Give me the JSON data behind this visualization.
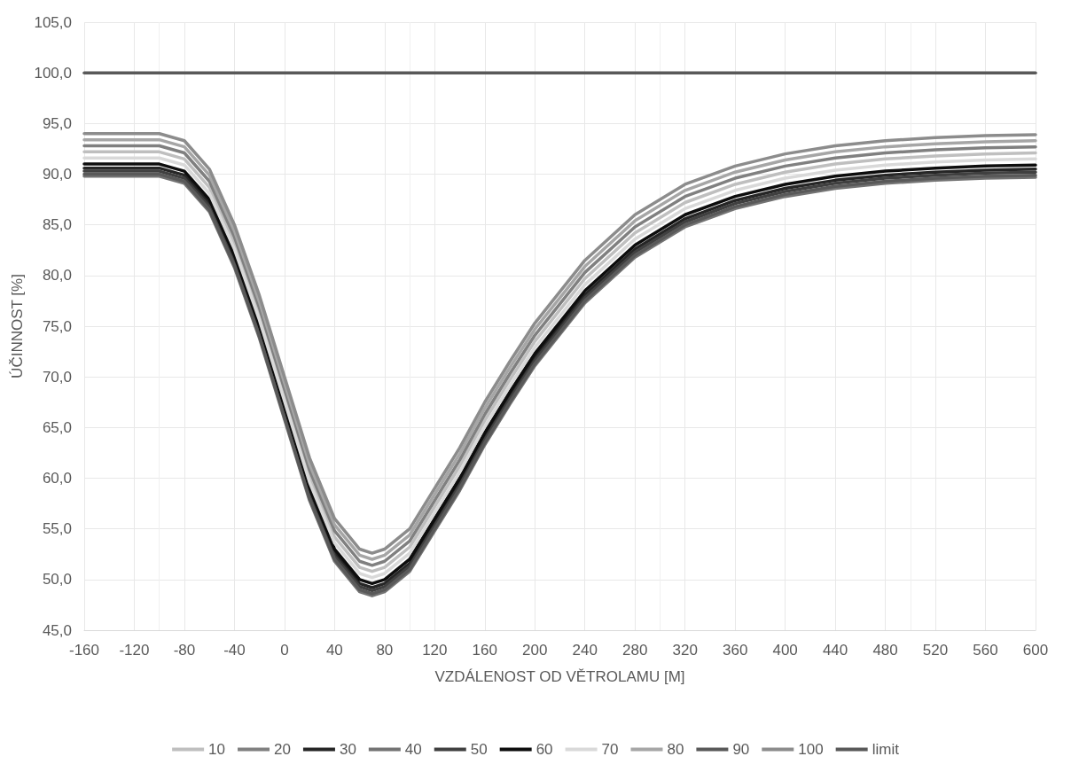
{
  "chart_data": {
    "type": "line",
    "xlabel": "VZDÁLENOST OD VĚTROLAMU [M]",
    "ylabel": "ÚČINNOST [%]",
    "x": [
      -160,
      -120,
      -100,
      -80,
      -60,
      -40,
      -20,
      0,
      20,
      40,
      60,
      70,
      80,
      100,
      120,
      140,
      160,
      180,
      200,
      240,
      280,
      320,
      360,
      400,
      440,
      480,
      520,
      560,
      600
    ],
    "xlim": [
      -160,
      600
    ],
    "xticks": [
      -160,
      -120,
      -80,
      -40,
      0,
      40,
      80,
      120,
      160,
      200,
      240,
      280,
      320,
      360,
      400,
      440,
      480,
      520,
      560,
      600
    ],
    "ylim": [
      45,
      105
    ],
    "yticks": [
      {
        "value": 45,
        "label": "45,0"
      },
      {
        "value": 50,
        "label": "50,0"
      },
      {
        "value": 55,
        "label": "55,0"
      },
      {
        "value": 60,
        "label": "60,0"
      },
      {
        "value": 65,
        "label": "65,0"
      },
      {
        "value": 70,
        "label": "70,0"
      },
      {
        "value": 75,
        "label": "75,0"
      },
      {
        "value": 80,
        "label": "80,0"
      },
      {
        "value": 85,
        "label": "85,0"
      },
      {
        "value": 90,
        "label": "90,0"
      },
      {
        "value": 95,
        "label": "95,0"
      },
      {
        "value": 100,
        "label": "100,0"
      },
      {
        "value": 105,
        "label": "105,0"
      }
    ],
    "grid": true,
    "legend": "bottom",
    "marker": "none",
    "line_style": "solid",
    "series": [
      {
        "name": "10",
        "color": "#bfbfbf",
        "values": [
          92.2,
          92.2,
          92.2,
          91.5,
          88.7,
          83.2,
          76.2,
          68.2,
          60.2,
          54.2,
          51.2,
          50.8,
          51.2,
          53.2,
          57.2,
          61.2,
          65.7,
          69.7,
          73.5,
          79.7,
          84.2,
          87.2,
          89,
          90.2,
          91,
          91.5,
          91.8,
          92,
          92.1
        ]
      },
      {
        "name": "20",
        "color": "#808080",
        "values": [
          92.8,
          92.8,
          92.8,
          92.1,
          89.3,
          83.8,
          76.8,
          68.8,
          60.8,
          54.8,
          51.8,
          51.4,
          51.8,
          53.8,
          57.8,
          61.8,
          66.3,
          70.3,
          74.1,
          80.3,
          84.8,
          87.8,
          89.6,
          90.8,
          91.6,
          92.1,
          92.4,
          92.6,
          92.7
        ]
      },
      {
        "name": "30",
        "color": "#262626",
        "values": [
          90.6,
          90.6,
          90.6,
          89.9,
          87.1,
          81.6,
          74.6,
          66.6,
          58.6,
          52.6,
          49.6,
          49.2,
          49.6,
          51.6,
          55.6,
          59.6,
          64.1,
          68.1,
          71.9,
          78.1,
          82.6,
          85.6,
          87.4,
          88.6,
          89.4,
          89.9,
          90.2,
          90.4,
          90.5
        ]
      },
      {
        "name": "40",
        "color": "#737373",
        "values": [
          89.8,
          89.8,
          89.8,
          89.1,
          86.3,
          80.8,
          73.8,
          65.8,
          57.8,
          51.8,
          48.8,
          48.4,
          48.8,
          50.8,
          54.8,
          58.8,
          63.3,
          67.3,
          71.1,
          77.3,
          81.8,
          84.8,
          86.6,
          87.8,
          88.6,
          89.1,
          89.4,
          89.6,
          89.7
        ]
      },
      {
        "name": "50",
        "color": "#404040",
        "values": [
          90.3,
          90.3,
          90.3,
          89.6,
          86.8,
          81.3,
          74.3,
          66.3,
          58.3,
          52.3,
          49.3,
          48.9,
          49.3,
          51.3,
          55.3,
          59.3,
          63.8,
          67.8,
          71.6,
          77.8,
          82.3,
          85.3,
          87.1,
          88.3,
          89.1,
          89.6,
          89.9,
          90.1,
          90.2
        ]
      },
      {
        "name": "60",
        "color": "#0d0d0d",
        "values": [
          91,
          91,
          91,
          90.3,
          87.5,
          82,
          75,
          67,
          59,
          53,
          50,
          49.6,
          50,
          52,
          56,
          60,
          64.5,
          68.5,
          72.3,
          78.5,
          83,
          86,
          87.8,
          89,
          89.8,
          90.3,
          90.6,
          90.8,
          90.9
        ]
      },
      {
        "name": "70",
        "color": "#d9d9d9",
        "values": [
          91.6,
          91.6,
          91.6,
          90.9,
          88.1,
          82.6,
          75.6,
          67.6,
          59.6,
          53.6,
          50.6,
          50.2,
          50.6,
          52.6,
          56.6,
          60.6,
          65.1,
          69.1,
          72.9,
          79.1,
          83.6,
          86.6,
          88.4,
          89.6,
          90.4,
          90.9,
          91.2,
          91.4,
          91.5
        ]
      },
      {
        "name": "80",
        "color": "#a6a6a6",
        "values": [
          93.4,
          93.4,
          93.4,
          92.7,
          89.9,
          84.4,
          77.4,
          69.4,
          61.4,
          55.4,
          52.4,
          52,
          52.4,
          54.4,
          58.4,
          62.4,
          66.9,
          70.9,
          74.7,
          80.9,
          85.4,
          88.4,
          90.2,
          91.4,
          92.2,
          92.7,
          93,
          93.2,
          93.3
        ]
      },
      {
        "name": "90",
        "color": "#595959",
        "values": [
          90,
          90,
          90,
          89.3,
          86.5,
          81,
          74,
          66,
          58,
          52,
          49,
          48.6,
          49,
          51,
          55,
          59,
          63.5,
          67.5,
          71.3,
          77.5,
          82,
          85,
          86.8,
          88,
          88.8,
          89.3,
          89.6,
          89.8,
          89.9
        ]
      },
      {
        "name": "100",
        "color": "#8c8c8c",
        "values": [
          94,
          94,
          94,
          93.3,
          90.5,
          85,
          78,
          70,
          62,
          56,
          53,
          52.6,
          53,
          55,
          59,
          63,
          67.5,
          71.5,
          75.3,
          81.5,
          86,
          89,
          90.8,
          92,
          92.8,
          93.3,
          93.6,
          93.8,
          93.9
        ]
      },
      {
        "name": "limit",
        "color": "#595959",
        "x": [
          -160,
          600
        ],
        "values": [
          100,
          100
        ]
      }
    ]
  }
}
